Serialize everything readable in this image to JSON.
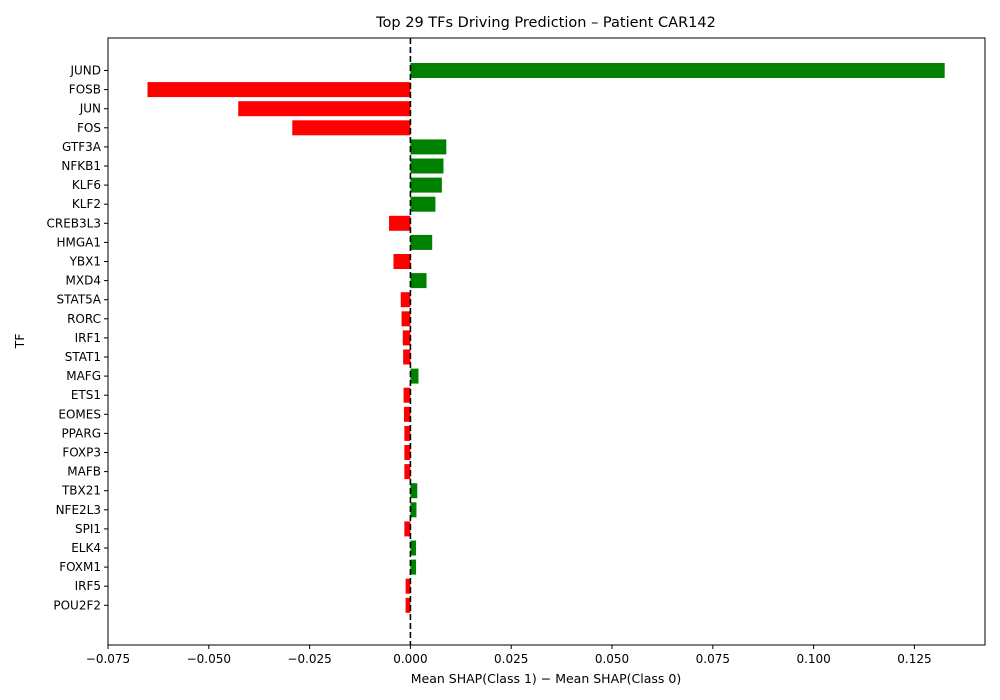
{
  "chart_data": {
    "type": "bar",
    "orientation": "horizontal",
    "title": "Top 29 TFs Driving Prediction – Patient CAR142",
    "xlabel": "Mean SHAP(Class 1) − Mean SHAP(Class 0)",
    "ylabel": "TF",
    "xlim": [
      -0.075,
      0.1425
    ],
    "xticks": [
      -0.075,
      -0.05,
      -0.025,
      0.0,
      0.025,
      0.05,
      0.075,
      0.1,
      0.125
    ],
    "xtick_labels": [
      "−0.075",
      "−0.050",
      "−0.025",
      "0.000",
      "0.025",
      "0.050",
      "0.075",
      "0.100",
      "0.125"
    ],
    "reference_line": {
      "x": 0,
      "style": "dashed",
      "color": "#000000"
    },
    "colors": {
      "positive": "#008000",
      "negative": "#ff0000"
    },
    "grid": false,
    "categories": [
      "JUND",
      "FOSB",
      "JUN",
      "FOS",
      "GTF3A",
      "NFKB1",
      "KLF6",
      "KLF2",
      "CREB3L3",
      "HMGA1",
      "YBX1",
      "MXD4",
      "STAT5A",
      "RORC",
      "IRF1",
      "STAT1",
      "MAFG",
      "ETS1",
      "EOMES",
      "PPARG",
      "FOXP3",
      "MAFB",
      "TBX21",
      "NFE2L3",
      "SPI1",
      "ELK4",
      "FOXM1",
      "IRF5",
      "POU2F2"
    ],
    "values": [
      0.1325,
      -0.0652,
      -0.0427,
      -0.0293,
      0.0089,
      0.0082,
      0.0078,
      0.0062,
      -0.0053,
      0.0054,
      -0.0042,
      0.004,
      -0.0024,
      -0.0022,
      -0.0019,
      -0.0018,
      0.002,
      -0.0017,
      -0.0016,
      -0.0015,
      -0.0015,
      -0.0015,
      0.0017,
      0.0015,
      -0.0015,
      0.0014,
      0.0014,
      -0.0012,
      -0.0012
    ]
  }
}
